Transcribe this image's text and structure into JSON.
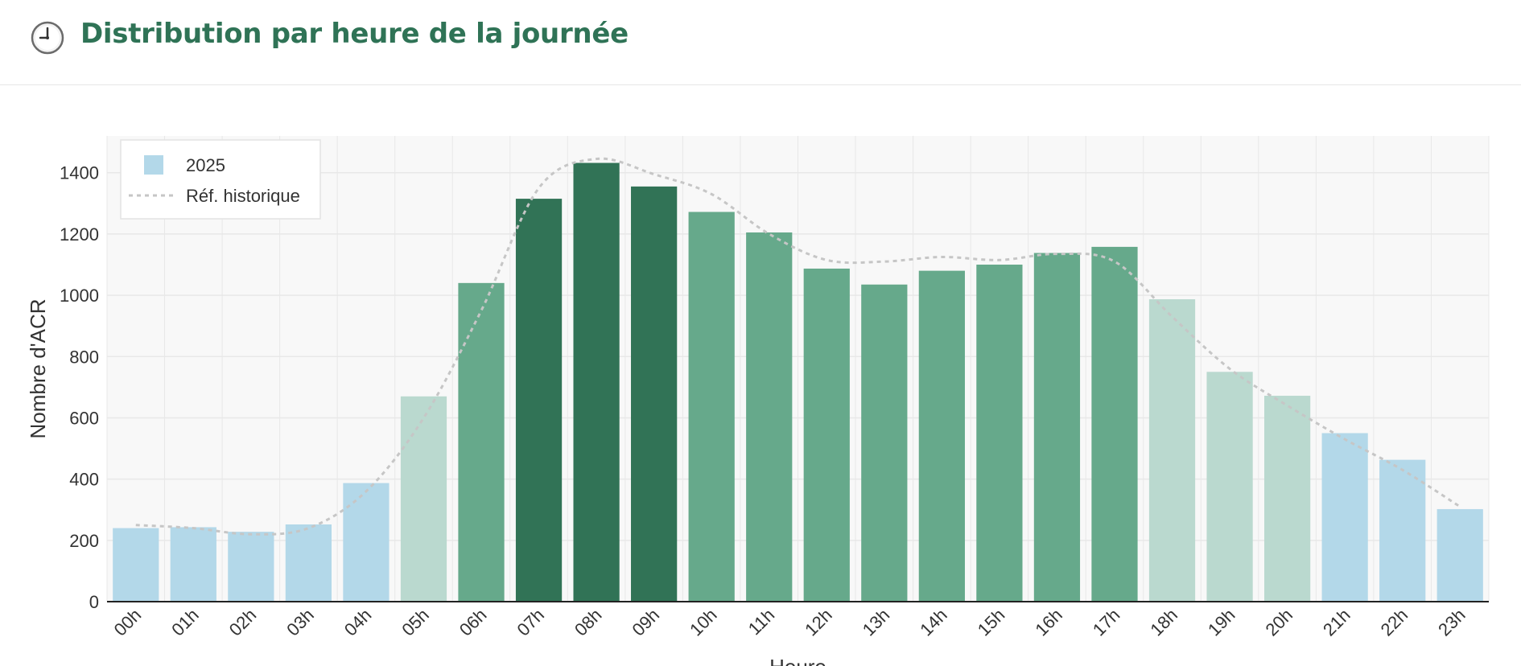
{
  "header": {
    "title": "Distribution par heure de la journée",
    "icon": "clock-icon"
  },
  "chart_data": {
    "type": "bar",
    "xlabel": "Heure",
    "ylabel": "Nombre d'ACR",
    "ylim": [
      0,
      1520
    ],
    "yticks": [
      0,
      200,
      400,
      600,
      800,
      1000,
      1200,
      1400
    ],
    "grid": true,
    "legend_position": "top-left",
    "categories": [
      "00h",
      "01h",
      "02h",
      "03h",
      "04h",
      "05h",
      "06h",
      "07h",
      "08h",
      "09h",
      "10h",
      "11h",
      "12h",
      "13h",
      "14h",
      "15h",
      "16h",
      "17h",
      "18h",
      "19h",
      "20h",
      "21h",
      "22h",
      "23h"
    ],
    "series": [
      {
        "name": "2025",
        "kind": "bar",
        "values": [
          240,
          243,
          228,
          252,
          387,
          670,
          1040,
          1315,
          1432,
          1355,
          1272,
          1205,
          1087,
          1035,
          1080,
          1100,
          1138,
          1158,
          987,
          750,
          672,
          550,
          463,
          302
        ],
        "colors": [
          "#b3d8e9",
          "#b3d8e9",
          "#b3d8e9",
          "#b3d8e9",
          "#b3d8e9",
          "#bad9cf",
          "#66a98b",
          "#317356",
          "#317356",
          "#317356",
          "#66a98b",
          "#66a98b",
          "#66a98b",
          "#66a98b",
          "#66a98b",
          "#66a98b",
          "#66a98b",
          "#66a98b",
          "#bad9cf",
          "#bad9cf",
          "#bad9cf",
          "#b3d8e9",
          "#b3d8e9",
          "#b3d8e9"
        ]
      },
      {
        "name": "Réf. historique",
        "kind": "line",
        "style": "dotted",
        "color": "#c6c6c6",
        "values": [
          250,
          240,
          220,
          240,
          360,
          600,
          950,
          1350,
          1445,
          1395,
          1330,
          1200,
          1115,
          1110,
          1125,
          1115,
          1135,
          1110,
          930,
          760,
          640,
          530,
          430,
          310
        ]
      }
    ],
    "colors": {
      "legend_2025": "#b3d8e9",
      "title": "#2f7356",
      "plot_background": "#f8f8f8",
      "grid": "#e8e8e8"
    }
  }
}
